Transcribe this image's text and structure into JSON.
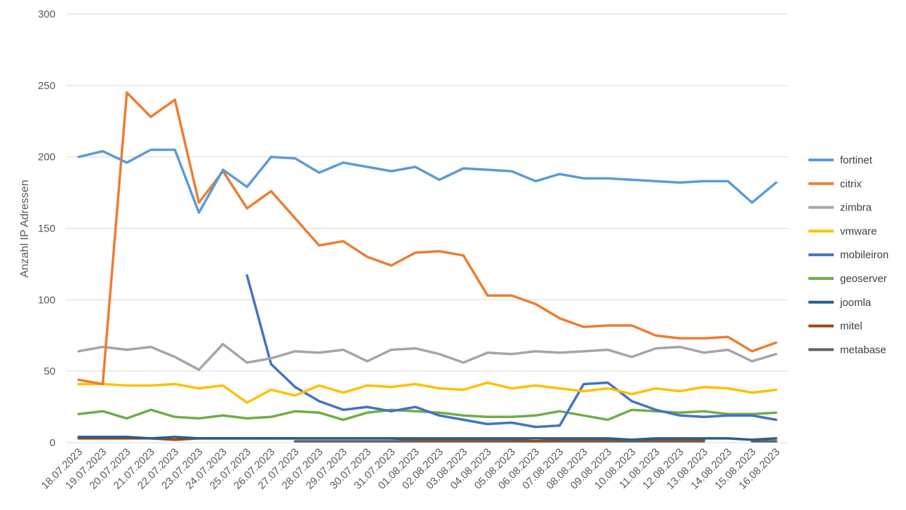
{
  "chart_data": {
    "type": "line",
    "title": "",
    "xlabel": "",
    "ylabel": "Anzahl IP Adressen",
    "ylim": [
      0,
      300
    ],
    "yticks": [
      0,
      50,
      100,
      150,
      200,
      250,
      300
    ],
    "grid": true,
    "legend_position": "right",
    "categories": [
      "18.07.2023",
      "19.07.2023",
      "20.07.2023",
      "21.07.2023",
      "22.07.2023",
      "23.07.2023",
      "24.07.2023",
      "25.07.2023",
      "26.07.2023",
      "27.07.2023",
      "28.07.2023",
      "29.07.2023",
      "30.07.2023",
      "31.07.2023",
      "01.08.2023",
      "02.08.2023",
      "03.08.2023",
      "04.08.2023",
      "05.08.2023",
      "06.08.2023",
      "07.08.2023",
      "08.08.2023",
      "09.08.2023",
      "10.08.2023",
      "11.08.2023",
      "12.08.2023",
      "13.08.2023",
      "14.08.2023",
      "15.08.2023",
      "16.08.2023"
    ],
    "series": [
      {
        "name": "fortinet",
        "color": "#5B9BD5",
        "values": [
          200,
          204,
          196,
          205,
          205,
          161,
          191,
          179,
          200,
          199,
          189,
          196,
          193,
          190,
          193,
          184,
          192,
          191,
          190,
          183,
          188,
          185,
          185,
          184,
          183,
          182,
          183,
          183,
          168,
          182
        ]
      },
      {
        "name": "citrix",
        "color": "#ED7D31",
        "values": [
          44,
          41,
          245,
          228,
          240,
          168,
          190,
          164,
          176,
          157,
          138,
          141,
          130,
          124,
          133,
          134,
          131,
          103,
          103,
          97,
          87,
          81,
          82,
          82,
          75,
          73,
          73,
          74,
          64,
          70
        ]
      },
      {
        "name": "zimbra",
        "color": "#A5A5A5",
        "values": [
          64,
          67,
          65,
          67,
          60,
          51,
          69,
          56,
          59,
          64,
          63,
          65,
          57,
          65,
          66,
          62,
          56,
          63,
          62,
          64,
          63,
          64,
          65,
          60,
          66,
          67,
          63,
          65,
          57,
          62
        ]
      },
      {
        "name": "vmware",
        "color": "#FFC000",
        "values": [
          41,
          41,
          40,
          40,
          41,
          38,
          40,
          28,
          37,
          33,
          40,
          35,
          40,
          39,
          41,
          38,
          37,
          42,
          38,
          40,
          38,
          36,
          38,
          34,
          38,
          36,
          39,
          38,
          35,
          37
        ]
      },
      {
        "name": "mobileiron",
        "color": "#4472C4",
        "values": [
          null,
          null,
          null,
          null,
          null,
          null,
          null,
          117,
          55,
          39,
          29,
          23,
          25,
          22,
          25,
          19,
          16,
          13,
          14,
          11,
          12,
          41,
          42,
          29,
          23,
          19,
          18,
          19,
          19,
          16
        ]
      },
      {
        "name": "geoserver",
        "color": "#70AD47",
        "values": [
          20,
          22,
          17,
          23,
          18,
          17,
          19,
          17,
          18,
          22,
          21,
          16,
          21,
          23,
          22,
          21,
          19,
          18,
          18,
          19,
          22,
          19,
          16,
          23,
          22,
          21,
          22,
          20,
          20,
          21
        ]
      },
      {
        "name": "joomla",
        "color": "#255E91",
        "values": [
          4,
          4,
          4,
          3,
          4,
          3,
          3,
          3,
          3,
          3,
          3,
          3,
          3,
          3,
          3,
          3,
          3,
          3,
          3,
          3,
          3,
          3,
          3,
          2,
          3,
          3,
          3,
          3,
          2,
          3
        ]
      },
      {
        "name": "mitel",
        "color": "#9E480E",
        "values": [
          3,
          3,
          3,
          3,
          2,
          3,
          3,
          3,
          3,
          3,
          3,
          3,
          3,
          3,
          2,
          2,
          2,
          2,
          2,
          1,
          2,
          2,
          2,
          2,
          2,
          2,
          2,
          null,
          null,
          null
        ]
      },
      {
        "name": "metabase",
        "color": "#636363",
        "values": [
          null,
          null,
          null,
          null,
          null,
          null,
          null,
          null,
          null,
          1,
          1,
          1,
          1,
          1,
          1,
          1,
          1,
          1,
          1,
          1,
          1,
          1,
          1,
          1,
          1,
          1,
          1,
          null,
          1,
          1
        ]
      }
    ]
  }
}
